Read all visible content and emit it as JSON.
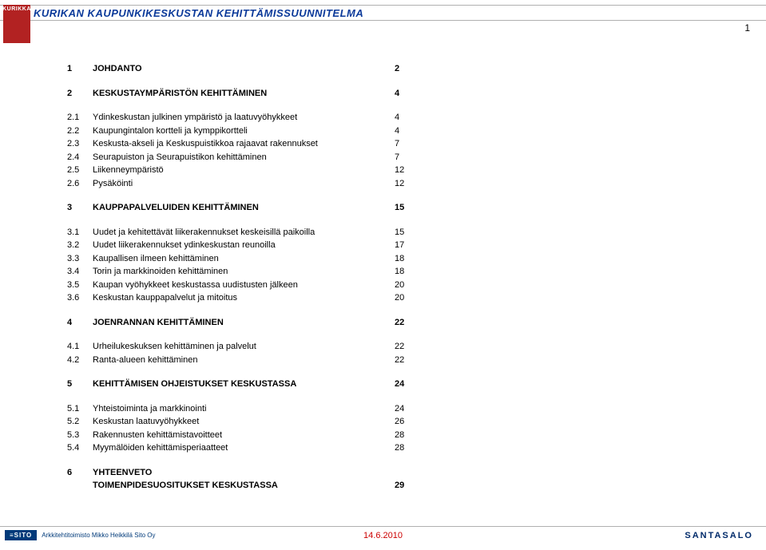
{
  "header": {
    "title": "KURIKAN KAUPUNKIKESKUSTAN KEHITTÄMISSUUNNITELMA",
    "logo_text": "KURIKKA"
  },
  "page_number": "1",
  "toc": [
    {
      "type": "main",
      "num": "1",
      "label": "JOHDANTO",
      "page": "2"
    },
    {
      "type": "spacer"
    },
    {
      "type": "main",
      "num": "2",
      "label": "KESKUSTAYMPÄRISTÖN KEHITTÄMINEN",
      "page": "4"
    },
    {
      "type": "spacer"
    },
    {
      "type": "sub",
      "num": "2.1",
      "label": "Ydinkeskustan julkinen ympäristö ja laatuvyöhykkeet",
      "page": "4"
    },
    {
      "type": "sub",
      "num": "2.2",
      "label": "Kaupungintalon kortteli ja kymppikortteli",
      "page": "4"
    },
    {
      "type": "sub",
      "num": "2.3",
      "label": "Keskusta-akseli ja Keskuspuistikkoa rajaavat rakennukset",
      "page": "7"
    },
    {
      "type": "sub",
      "num": "2.4",
      "label": "Seurapuiston ja Seurapuistikon kehittäminen",
      "page": "7"
    },
    {
      "type": "sub",
      "num": "2.5",
      "label": "Liikenneympäristö",
      "page": "12"
    },
    {
      "type": "sub",
      "num": "2.6",
      "label": "Pysäköinti",
      "page": "12"
    },
    {
      "type": "spacer"
    },
    {
      "type": "main",
      "num": "3",
      "label": "KAUPPAPALVELUIDEN KEHITTÄMINEN",
      "page": "15"
    },
    {
      "type": "spacer"
    },
    {
      "type": "sub",
      "num": "3.1",
      "label": "Uudet ja kehitettävät liikerakennukset keskeisillä paikoilla",
      "page": "15"
    },
    {
      "type": "sub",
      "num": "3.2",
      "label": "Uudet liikerakennukset ydinkeskustan reunoilla",
      "page": "17"
    },
    {
      "type": "sub",
      "num": "3.3",
      "label": "Kaupallisen ilmeen kehittäminen",
      "page": "18"
    },
    {
      "type": "sub",
      "num": "3.4",
      "label": "Torin ja markkinoiden kehittäminen",
      "page": "18"
    },
    {
      "type": "sub",
      "num": "3.5",
      "label": "Kaupan vyöhykkeet keskustassa uudistusten jälkeen",
      "page": "20"
    },
    {
      "type": "sub",
      "num": "3.6",
      "label": "Keskustan kauppapalvelut ja mitoitus",
      "page": "20"
    },
    {
      "type": "spacer"
    },
    {
      "type": "main",
      "num": "4",
      "label": "JOENRANNAN KEHITTÄMINEN",
      "page": "22"
    },
    {
      "type": "spacer"
    },
    {
      "type": "sub",
      "num": "4.1",
      "label": "Urheilukeskuksen kehittäminen ja palvelut",
      "page": "22"
    },
    {
      "type": "sub",
      "num": "4.2",
      "label": "Ranta-alueen kehittäminen",
      "page": "22"
    },
    {
      "type": "spacer"
    },
    {
      "type": "main",
      "num": "5",
      "label": "KEHITTÄMISEN OHJEISTUKSET KESKUSTASSA",
      "page": "24"
    },
    {
      "type": "spacer"
    },
    {
      "type": "sub",
      "num": "5.1",
      "label": "Yhteistoiminta ja markkinointi",
      "page": "24"
    },
    {
      "type": "sub",
      "num": "5.2",
      "label": "Keskustan laatuvyöhykkeet",
      "page": "26"
    },
    {
      "type": "sub",
      "num": "5.3",
      "label": "Rakennusten kehittämistavoitteet",
      "page": "28"
    },
    {
      "type": "sub",
      "num": "5.4",
      "label": "Myymälöiden kehittämisperiaatteet",
      "page": "28"
    },
    {
      "type": "spacer"
    },
    {
      "type": "main",
      "num": "6",
      "label": "YHTEENVETO",
      "page": ""
    },
    {
      "type": "main-cont",
      "num": "",
      "label": "TOIMENPIDESUOSITUKSET KESKUSTASSA",
      "page": "29"
    }
  ],
  "footer": {
    "sito_logo": "≡SITO",
    "arch_text": "Arkkitehtitoimisto Mikko Heikkilä Sito Oy",
    "date": "14.6.2010",
    "right_brand": "SANTASALO"
  },
  "colors": {
    "header_text": "#0b3a9a",
    "logo_bg": "#b22222",
    "footer_date": "#c00",
    "sito_bg": "#003a7a",
    "brand_text": "#002a6a"
  }
}
